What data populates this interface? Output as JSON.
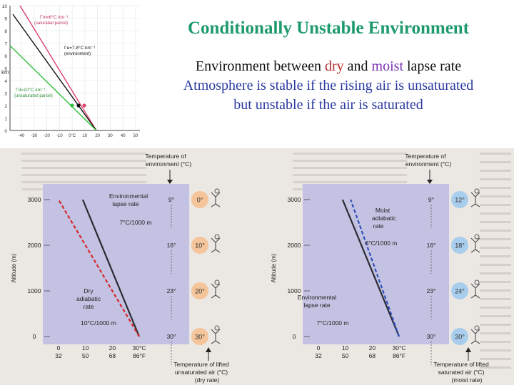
{
  "slide": {
    "title": "Conditionally Unstable Environment",
    "line1": {
      "pre": "Environment between ",
      "dry": "dry",
      "mid": " and ",
      "moist": "moist",
      "post": " lapse rate"
    },
    "line2": "Atmosphere is stable if the rising air is unsaturated",
    "line3": "but unstable if the air is saturated"
  },
  "small_graph": {
    "y_ticks": [
      "10",
      "9",
      "8",
      "7",
      "6",
      "5",
      "4",
      "3",
      "2",
      "1",
      "0"
    ],
    "y_unit": "km",
    "x_ticks": [
      "-40",
      "-30",
      "-20",
      "-10",
      "0°C",
      "10",
      "20",
      "30",
      "40",
      "50"
    ],
    "label_moist_a": "Γm=6°C km⁻¹",
    "label_moist_b": "(saturated parcel)",
    "label_env_a": "Γe=7.8°C km⁻¹",
    "label_env_b": "(environment)",
    "label_dry_a": "Γd=10°C km⁻¹",
    "label_dry_b": "(unsaturated parcel)",
    "colors": {
      "moist": "#e0406c",
      "env": "#111111",
      "dry": "#2fbf3a"
    }
  },
  "panels": [
    {
      "top_caption_a": "Temperature of",
      "top_caption_b": "environment (°C)",
      "y_label": "Altitude (m)",
      "y_ticks": [
        "3000",
        "2000",
        "1000",
        "0"
      ],
      "x_c": [
        "0",
        "10",
        "20",
        "30°C"
      ],
      "x_f": [
        "32",
        "50",
        "68",
        "86°F"
      ],
      "env_temps": [
        "9°",
        "16°",
        "23°",
        "30°"
      ],
      "parcel_temps": [
        "0°",
        "10°",
        "20°",
        "30°"
      ],
      "lapse_label_a": "Environmental",
      "lapse_label_b": "lapse rate",
      "lapse_value": "7°C/1000 m",
      "adiabatic_a": "Dry",
      "adiabatic_b": "adiabatic",
      "adiabatic_c": "rate",
      "adiabatic_value": "10°C/1000 m",
      "bottom_a": "Temperature of lifted",
      "bottom_b": "unsaturated air (°C)",
      "bottom_c": "(dry rate)",
      "balloon_color": "#f4c49a",
      "adiabatic_color": "#d8262b"
    },
    {
      "top_caption_a": "Temperature of",
      "top_caption_b": "environment (°C)",
      "y_label": "Altitude (m)",
      "y_ticks": [
        "3000",
        "2000",
        "1000",
        "0"
      ],
      "x_c": [
        "0",
        "10",
        "20",
        "30°C"
      ],
      "x_f": [
        "32",
        "50",
        "68",
        "86°F"
      ],
      "env_temps": [
        "9°",
        "16°",
        "23°",
        "30°"
      ],
      "parcel_temps": [
        "12°",
        "18°",
        "24°",
        "30°"
      ],
      "lapse_label_a": "Environmental",
      "lapse_label_b": "lapse rate",
      "lapse_value": "7°C/1000 m",
      "adiabatic_a": "Moist",
      "adiabatic_b": "adiabatic",
      "adiabatic_c": "rate",
      "adiabatic_value": "6°C/1000 m",
      "bottom_a": "Temperature of lifted",
      "bottom_b": "saturated air (°C)",
      "bottom_c": "(moist rate)",
      "balloon_color": "#a9cdec",
      "adiabatic_color": "#2f4fb8"
    }
  ]
}
